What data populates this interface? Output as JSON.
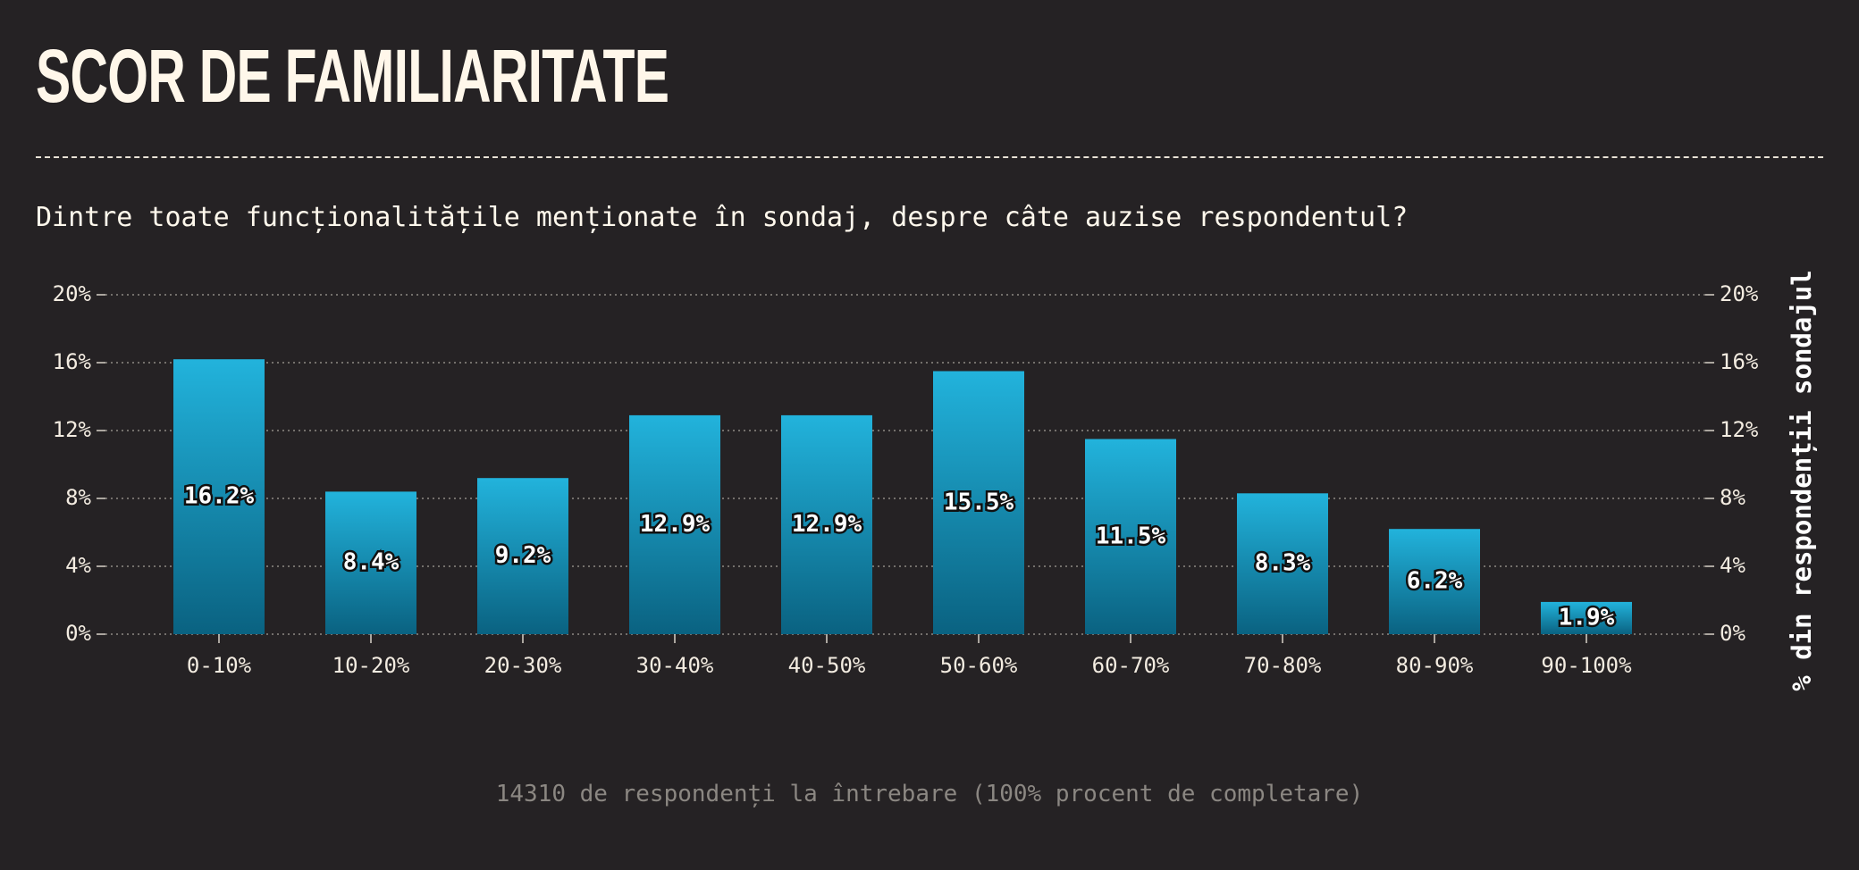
{
  "header": {
    "title": "SCOR DE FAMILIARITATE",
    "subtitle": "Dintre toate funcționalitățile menționate în sondaj, despre câte auzise respondentul?"
  },
  "footnote": "14310 de respondenți la întrebare (100% procent de completare)",
  "chart_data": {
    "type": "bar",
    "categories": [
      "0-10%",
      "10-20%",
      "20-30%",
      "30-40%",
      "40-50%",
      "50-60%",
      "60-70%",
      "70-80%",
      "80-90%",
      "90-100%"
    ],
    "values": [
      16.2,
      8.4,
      9.2,
      12.9,
      12.9,
      15.5,
      11.5,
      8.3,
      6.2,
      1.9
    ],
    "data_labels": [
      "16.2%",
      "8.4%",
      "9.2%",
      "12.9%",
      "12.9%",
      "15.5%",
      "11.5%",
      "8.3%",
      "6.2%",
      "1.9%"
    ],
    "title": "",
    "xlabel": "",
    "ylabel": "% din respondenții sondajul",
    "ylim": [
      0,
      20
    ],
    "yticks": [
      0,
      4,
      8,
      12,
      16,
      20
    ],
    "ytick_labels": [
      "0%",
      "4%",
      "8%",
      "12%",
      "16%",
      "20%"
    ],
    "y_axis_both_sides": true,
    "grid": true,
    "legend": "none",
    "colors": {
      "bar_top": "#22b3dc",
      "bar_bottom": "#0a6281",
      "grid": "#8f8a84"
    }
  }
}
